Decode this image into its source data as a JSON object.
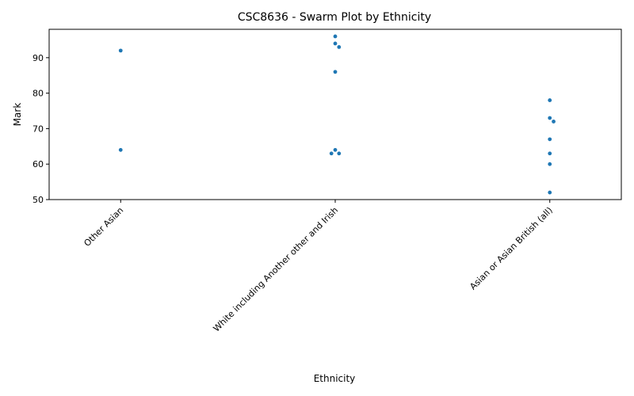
{
  "chart_data": {
    "type": "scatter",
    "subtype": "swarm",
    "title": "CSC8636 - Swarm Plot by Ethnicity",
    "xlabel": "Ethnicity",
    "ylabel": "Mark",
    "categories": [
      "Other Asian",
      "White including Another other and Irish",
      "Asian or Asian British (all)"
    ],
    "ylim": [
      50,
      98
    ],
    "yticks": [
      50,
      60,
      70,
      80,
      90
    ],
    "grid": false,
    "legend": false,
    "point_color": "#1f77b4",
    "groups": [
      {
        "category": "Other Asian",
        "values": [
          92,
          64
        ]
      },
      {
        "category": "White including Another other and Irish",
        "values": [
          96,
          94,
          93,
          86,
          64,
          63,
          63
        ]
      },
      {
        "category": "Asian or Asian British (all)",
        "values": [
          78,
          73,
          72,
          67,
          63,
          60,
          52
        ]
      }
    ]
  }
}
